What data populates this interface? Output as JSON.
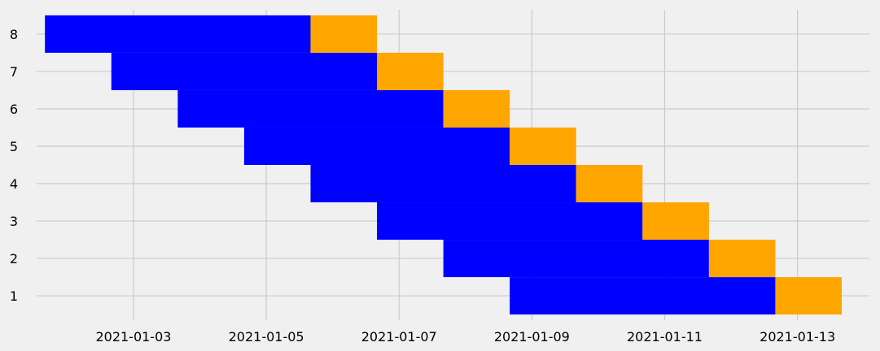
{
  "chart_data": {
    "type": "bar",
    "orientation": "horizontal",
    "stacked": true,
    "categories": [
      1,
      2,
      3,
      4,
      5,
      6,
      7,
      8
    ],
    "x_axis_type": "date",
    "xlim": [
      "2021-01-01T13:00",
      "2021-01-14T02:00"
    ],
    "ylim": [
      0.35,
      8.65
    ],
    "x_ticks": [
      "2021-01-03",
      "2021-01-05",
      "2021-01-07",
      "2021-01-09",
      "2021-01-11",
      "2021-01-13"
    ],
    "y_ticks": [
      1,
      2,
      3,
      4,
      5,
      6,
      7,
      8
    ],
    "grid": true,
    "title": "",
    "xlabel": "",
    "ylabel": "",
    "series": [
      {
        "color": "#0000ff",
        "start": [
          "2021-01-08T16:00",
          "2021-01-07T16:00",
          "2021-01-06T16:00",
          "2021-01-05T16:00",
          "2021-01-04T16:00",
          "2021-01-03T16:00",
          "2021-01-02T16:00",
          "2021-01-01T16:00"
        ],
        "end": [
          "2021-01-12T16:00",
          "2021-01-11T16:00",
          "2021-01-10T16:00",
          "2021-01-09T16:00",
          "2021-01-08T16:00",
          "2021-01-07T16:00",
          "2021-01-06T16:00",
          "2021-01-05T16:00"
        ]
      },
      {
        "color": "#ffa500",
        "start": [
          "2021-01-12T16:00",
          "2021-01-11T16:00",
          "2021-01-10T16:00",
          "2021-01-09T16:00",
          "2021-01-08T16:00",
          "2021-01-07T16:00",
          "2021-01-06T16:00",
          "2021-01-05T16:00"
        ],
        "end": [
          "2021-01-13T16:00",
          "2021-01-12T16:00",
          "2021-01-11T16:00",
          "2021-01-10T16:00",
          "2021-01-09T16:00",
          "2021-01-08T16:00",
          "2021-01-07T16:00",
          "2021-01-06T16:00"
        ]
      }
    ]
  }
}
